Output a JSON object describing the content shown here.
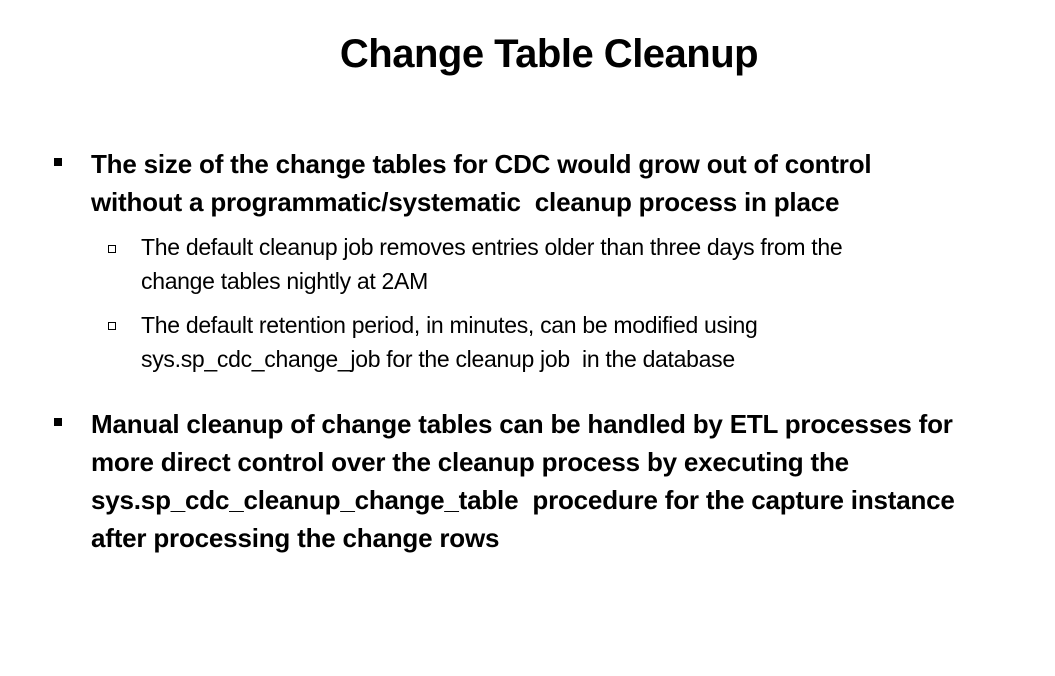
{
  "slide": {
    "title": "Change Table Cleanup",
    "bullets": [
      {
        "lines": [
          "The size of the change tables for CDC would grow out of control",
          "without a programmatic/systematic  cleanup process in place"
        ],
        "subbullets": [
          {
            "lines": [
              "The default cleanup job removes entries older than three days from the",
              "change tables nightly at 2AM"
            ]
          },
          {
            "lines": [
              "The default retention period, in minutes, can be modified using",
              "sys.sp_cdc_change_job for the cleanup job  in the database"
            ]
          }
        ]
      },
      {
        "lines": [
          "Manual cleanup of change tables can be handled by ETL processes for",
          "more direct control over the cleanup process by executing the",
          "sys.sp_cdc_cleanup_change_table  procedure for the capture instance",
          "after processing the change rows"
        ]
      }
    ]
  },
  "icons": {
    "level1_marker": "filled-square-bullet",
    "level2_marker": "hollow-square-bullet"
  }
}
